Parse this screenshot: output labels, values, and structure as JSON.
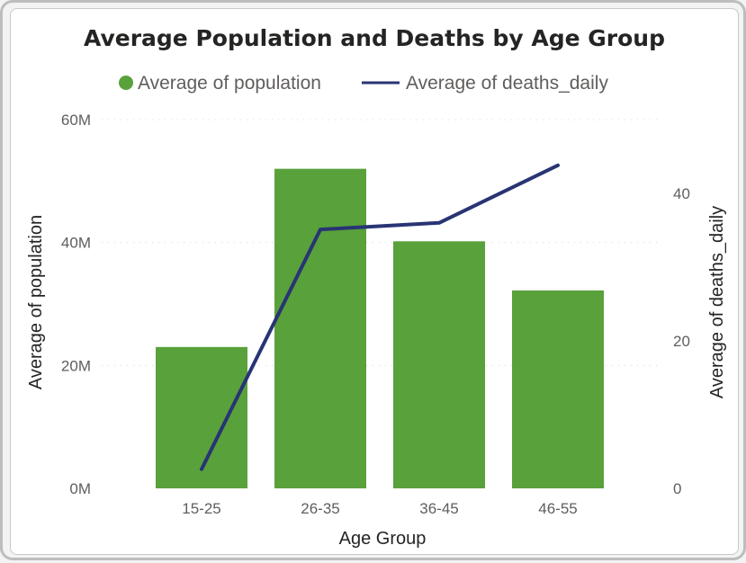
{
  "chart_data": {
    "type": "bar+line",
    "title": "Average Population and Deaths by Age Group",
    "xlabel": "Age Group",
    "ylabel_left": "Average of population",
    "ylabel_right": "Average of deaths_daily",
    "categories": [
      "15-25",
      "26-35",
      "36-45",
      "46-55"
    ],
    "series": [
      {
        "name": "Average of population",
        "type": "bar",
        "axis": "left",
        "color": "#59a13b",
        "values": [
          23,
          52,
          40.2,
          32.2
        ]
      },
      {
        "name": "Average of deaths_daily",
        "type": "line",
        "axis": "right",
        "color": "#283474",
        "values": [
          2.6,
          35.1,
          36.0,
          43.8
        ]
      }
    ],
    "ylim_left": [
      0,
      60
    ],
    "ylim_right": [
      0,
      50
    ],
    "left_ticks": [
      "0M",
      "20M",
      "40M",
      "60M"
    ],
    "left_tick_values": [
      0,
      20,
      40,
      60
    ],
    "right_ticks": [
      "0",
      "20",
      "40"
    ],
    "right_tick_values": [
      0,
      20,
      40
    ],
    "legend_position": "top-center",
    "grid": true
  }
}
